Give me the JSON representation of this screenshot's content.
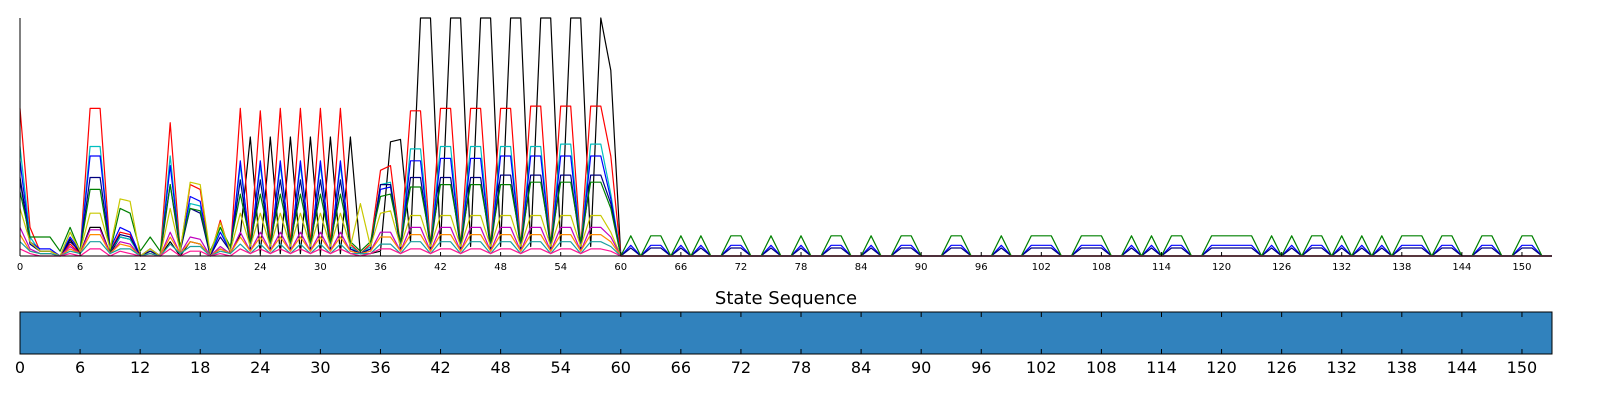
{
  "chart_data": [
    {
      "type": "line",
      "title": "",
      "xlabel": "",
      "ylabel": "",
      "xlim": [
        0,
        153
      ],
      "ylim": [
        0,
        1.0
      ],
      "xticks": [
        0,
        6,
        12,
        18,
        24,
        30,
        36,
        42,
        48,
        54,
        60,
        66,
        72,
        78,
        84,
        90,
        96,
        102,
        108,
        114,
        120,
        126,
        132,
        138,
        144,
        150
      ],
      "grid": false,
      "legend": "none",
      "x": [
        0,
        1,
        2,
        3,
        4,
        5,
        6,
        7,
        8,
        9,
        10,
        11,
        12,
        13,
        14,
        15,
        16,
        17,
        18,
        19,
        20,
        21,
        22,
        23,
        24,
        25,
        26,
        27,
        28,
        29,
        30,
        31,
        32,
        33,
        34,
        35,
        36,
        37,
        38,
        39,
        40,
        41,
        42,
        43,
        44,
        45,
        46,
        47,
        48,
        49,
        50,
        51,
        52,
        53,
        54,
        55,
        56,
        57,
        58,
        59
      ],
      "series": [
        {
          "color": "#000000",
          "values": [
            0.33,
            0.06,
            0.02,
            0.02,
            0.0,
            0.07,
            0.01,
            0.12,
            0.12,
            0.01,
            0.08,
            0.07,
            0.0,
            0.03,
            0.0,
            0.06,
            0.0,
            0.06,
            0.05,
            0.0,
            0.03,
            0.01,
            0.09,
            0.5,
            0.01,
            0.5,
            0.01,
            0.5,
            0.01,
            0.5,
            0.01,
            0.5,
            0.01,
            0.5,
            0.01,
            0.01,
            0.02,
            0.48,
            0.49,
            0.06,
            1.0,
            1.0,
            0.04,
            1.0,
            1.0,
            0.04,
            1.0,
            1.0,
            0.04,
            1.0,
            1.0,
            0.04,
            1.0,
            1.0,
            0.04,
            1.0,
            1.0,
            0.04,
            1.0,
            0.78
          ]
        },
        {
          "color": "#ff0000",
          "values": [
            0.62,
            0.12,
            0.02,
            0.02,
            0.0,
            0.05,
            0.01,
            0.62,
            0.62,
            0.02,
            0.1,
            0.09,
            0.0,
            0.02,
            0.0,
            0.56,
            0.02,
            0.3,
            0.28,
            0.0,
            0.15,
            0.01,
            0.62,
            0.05,
            0.61,
            0.05,
            0.62,
            0.05,
            0.62,
            0.05,
            0.62,
            0.05,
            0.62,
            0.05,
            0.01,
            0.05,
            0.36,
            0.38,
            0.04,
            0.61,
            0.61,
            0.04,
            0.62,
            0.62,
            0.04,
            0.62,
            0.62,
            0.04,
            0.62,
            0.62,
            0.04,
            0.63,
            0.63,
            0.04,
            0.63,
            0.63,
            0.04,
            0.63,
            0.63,
            0.42
          ]
        },
        {
          "color": "#00bfbf",
          "values": [
            0.46,
            0.08,
            0.02,
            0.02,
            0.0,
            0.1,
            0.02,
            0.46,
            0.46,
            0.02,
            0.08,
            0.07,
            0.0,
            0.02,
            0.0,
            0.42,
            0.02,
            0.22,
            0.21,
            0.0,
            0.12,
            0.02,
            0.38,
            0.04,
            0.38,
            0.04,
            0.38,
            0.04,
            0.38,
            0.04,
            0.38,
            0.04,
            0.38,
            0.04,
            0.01,
            0.04,
            0.3,
            0.31,
            0.04,
            0.45,
            0.45,
            0.04,
            0.46,
            0.46,
            0.04,
            0.46,
            0.46,
            0.04,
            0.46,
            0.46,
            0.04,
            0.46,
            0.46,
            0.04,
            0.47,
            0.47,
            0.04,
            0.47,
            0.47,
            0.26
          ]
        },
        {
          "color": "#0000ff",
          "values": [
            0.4,
            0.06,
            0.03,
            0.03,
            0.0,
            0.08,
            0.02,
            0.42,
            0.42,
            0.03,
            0.12,
            0.1,
            0.0,
            0.03,
            0.0,
            0.38,
            0.02,
            0.25,
            0.23,
            0.0,
            0.1,
            0.02,
            0.4,
            0.03,
            0.4,
            0.03,
            0.4,
            0.03,
            0.4,
            0.03,
            0.4,
            0.03,
            0.4,
            0.03,
            0.01,
            0.03,
            0.28,
            0.29,
            0.03,
            0.4,
            0.4,
            0.03,
            0.41,
            0.41,
            0.03,
            0.41,
            0.41,
            0.03,
            0.42,
            0.42,
            0.03,
            0.42,
            0.42,
            0.03,
            0.42,
            0.42,
            0.03,
            0.42,
            0.42,
            0.24
          ]
        },
        {
          "color": "#00007f",
          "values": [
            0.32,
            0.05,
            0.02,
            0.02,
            0.0,
            0.06,
            0.02,
            0.33,
            0.33,
            0.02,
            0.09,
            0.08,
            0.0,
            0.02,
            0.0,
            0.3,
            0.02,
            0.2,
            0.18,
            0.0,
            0.08,
            0.02,
            0.32,
            0.03,
            0.32,
            0.03,
            0.32,
            0.03,
            0.32,
            0.03,
            0.32,
            0.03,
            0.32,
            0.03,
            0.01,
            0.03,
            0.3,
            0.3,
            0.03,
            0.33,
            0.33,
            0.03,
            0.33,
            0.33,
            0.03,
            0.33,
            0.33,
            0.03,
            0.34,
            0.34,
            0.03,
            0.34,
            0.34,
            0.03,
            0.34,
            0.34,
            0.03,
            0.34,
            0.34,
            0.22
          ]
        },
        {
          "color": "#008000",
          "values": [
            0.27,
            0.08,
            0.08,
            0.08,
            0.02,
            0.12,
            0.02,
            0.28,
            0.28,
            0.02,
            0.2,
            0.18,
            0.02,
            0.08,
            0.02,
            0.3,
            0.04,
            0.2,
            0.19,
            0.02,
            0.12,
            0.04,
            0.26,
            0.06,
            0.26,
            0.06,
            0.26,
            0.06,
            0.26,
            0.06,
            0.26,
            0.06,
            0.26,
            0.06,
            0.02,
            0.06,
            0.25,
            0.26,
            0.06,
            0.29,
            0.29,
            0.06,
            0.3,
            0.3,
            0.06,
            0.3,
            0.3,
            0.06,
            0.3,
            0.3,
            0.06,
            0.31,
            0.31,
            0.06,
            0.31,
            0.31,
            0.06,
            0.31,
            0.31,
            0.2
          ]
        },
        {
          "color": "#c8c800",
          "values": [
            0.2,
            0.06,
            0.02,
            0.02,
            0.0,
            0.1,
            0.02,
            0.18,
            0.18,
            0.03,
            0.24,
            0.23,
            0.0,
            0.03,
            0.0,
            0.2,
            0.02,
            0.31,
            0.3,
            0.01,
            0.14,
            0.02,
            0.18,
            0.04,
            0.18,
            0.04,
            0.18,
            0.04,
            0.18,
            0.04,
            0.18,
            0.04,
            0.18,
            0.04,
            0.22,
            0.04,
            0.18,
            0.19,
            0.04,
            0.17,
            0.17,
            0.04,
            0.17,
            0.17,
            0.04,
            0.17,
            0.17,
            0.04,
            0.17,
            0.17,
            0.04,
            0.17,
            0.17,
            0.04,
            0.17,
            0.17,
            0.04,
            0.17,
            0.17,
            0.1
          ]
        },
        {
          "color": "#bf00bf",
          "values": [
            0.12,
            0.03,
            0.01,
            0.01,
            0.0,
            0.04,
            0.01,
            0.11,
            0.11,
            0.01,
            0.06,
            0.05,
            0.0,
            0.01,
            0.0,
            0.1,
            0.01,
            0.08,
            0.07,
            0.0,
            0.04,
            0.01,
            0.1,
            0.02,
            0.1,
            0.02,
            0.1,
            0.02,
            0.1,
            0.02,
            0.1,
            0.02,
            0.1,
            0.02,
            0.01,
            0.02,
            0.1,
            0.1,
            0.02,
            0.12,
            0.12,
            0.02,
            0.12,
            0.12,
            0.02,
            0.12,
            0.12,
            0.02,
            0.12,
            0.12,
            0.02,
            0.12,
            0.12,
            0.02,
            0.12,
            0.12,
            0.02,
            0.12,
            0.12,
            0.08
          ]
        },
        {
          "color": "#ff8c00",
          "values": [
            0.09,
            0.02,
            0.01,
            0.01,
            0.0,
            0.03,
            0.01,
            0.09,
            0.09,
            0.01,
            0.05,
            0.04,
            0.0,
            0.01,
            0.0,
            0.08,
            0.01,
            0.06,
            0.05,
            0.0,
            0.03,
            0.01,
            0.08,
            0.02,
            0.08,
            0.02,
            0.08,
            0.02,
            0.08,
            0.02,
            0.08,
            0.02,
            0.08,
            0.02,
            0.01,
            0.02,
            0.08,
            0.08,
            0.02,
            0.09,
            0.09,
            0.02,
            0.09,
            0.09,
            0.02,
            0.09,
            0.09,
            0.02,
            0.09,
            0.09,
            0.02,
            0.09,
            0.09,
            0.02,
            0.09,
            0.09,
            0.02,
            0.09,
            0.09,
            0.06
          ]
        },
        {
          "color": "#1a9f9f",
          "values": [
            0.06,
            0.02,
            0.01,
            0.01,
            0.0,
            0.02,
            0.01,
            0.06,
            0.06,
            0.01,
            0.03,
            0.03,
            0.0,
            0.01,
            0.0,
            0.05,
            0.01,
            0.04,
            0.04,
            0.0,
            0.02,
            0.01,
            0.05,
            0.01,
            0.05,
            0.01,
            0.05,
            0.01,
            0.05,
            0.01,
            0.05,
            0.01,
            0.05,
            0.01,
            0.01,
            0.01,
            0.05,
            0.05,
            0.01,
            0.06,
            0.06,
            0.01,
            0.06,
            0.06,
            0.01,
            0.06,
            0.06,
            0.01,
            0.06,
            0.06,
            0.01,
            0.06,
            0.06,
            0.01,
            0.06,
            0.06,
            0.01,
            0.06,
            0.06,
            0.04
          ]
        },
        {
          "color": "#ff1493",
          "values": [
            0.03,
            0.01,
            0.0,
            0.0,
            0.0,
            0.01,
            0.0,
            0.03,
            0.03,
            0.0,
            0.02,
            0.01,
            0.0,
            0.0,
            0.0,
            0.03,
            0.0,
            0.02,
            0.02,
            0.0,
            0.01,
            0.0,
            0.03,
            0.01,
            0.03,
            0.01,
            0.03,
            0.01,
            0.03,
            0.01,
            0.03,
            0.01,
            0.03,
            0.01,
            0.0,
            0.01,
            0.03,
            0.03,
            0.01,
            0.03,
            0.03,
            0.01,
            0.03,
            0.03,
            0.01,
            0.03,
            0.03,
            0.01,
            0.03,
            0.03,
            0.01,
            0.03,
            0.03,
            0.01,
            0.03,
            0.03,
            0.01,
            0.03,
            0.03,
            0.02
          ]
        }
      ],
      "tail": {
        "green_peak_x": [
          61,
          63,
          64,
          66,
          68,
          71,
          72,
          75,
          78,
          81,
          82,
          85,
          88,
          89,
          93,
          94,
          98,
          101,
          102,
          103,
          106,
          107,
          108,
          111,
          113,
          115,
          116,
          119,
          120,
          121,
          122,
          123,
          125,
          127,
          129,
          130,
          132,
          134,
          136,
          138,
          139,
          140,
          142,
          143,
          146,
          147,
          150,
          151
        ],
        "green_peak_value": 0.085,
        "blue_peak_value": 0.045
      }
    },
    {
      "type": "heatmap",
      "title": "State Sequence",
      "xlim": [
        0,
        153
      ],
      "xticks": [
        "0",
        "6",
        "12",
        "18",
        "24",
        "30",
        "36",
        "42",
        "48",
        "54",
        "60",
        "66",
        "72",
        "78",
        "84",
        "90",
        "96",
        "102",
        "108",
        "114",
        "120",
        "126",
        "132",
        "138",
        "144",
        "150"
      ],
      "states": [
        {
          "from": 0,
          "to": 153,
          "color": "#3182bd"
        }
      ]
    }
  ]
}
